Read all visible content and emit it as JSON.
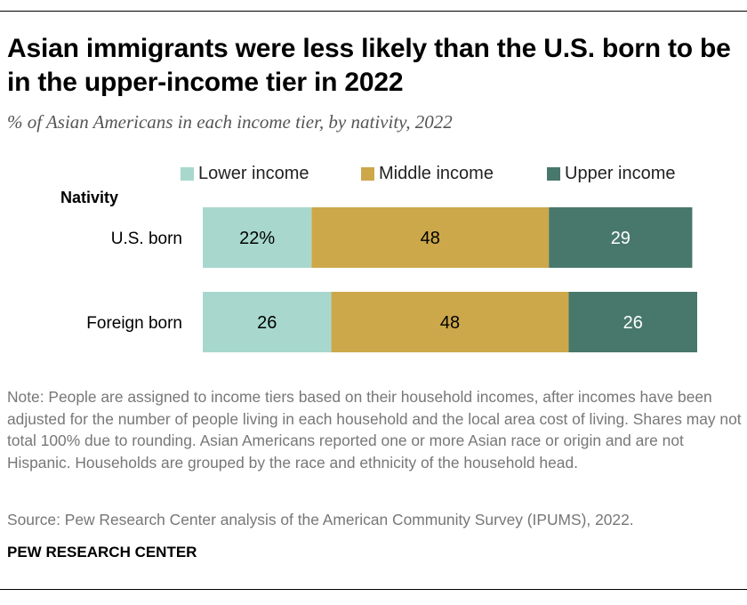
{
  "title": "Asian immigrants were less likely than the U.S. born to be in the upper-income tier in 2022",
  "subtitle": "% of Asian Americans in each income tier, by nativity, 2022",
  "note": "Note: People are assigned to income tiers based on their household incomes, after incomes have been adjusted for the number of people living in each household and the local area cost of living. Shares may not total 100% due to rounding. Asian Americans reported one or more Asian race or origin and are not Hispanic. Households are grouped by the race and ethnicity of the household head.",
  "source": "Source: Pew Research Center analysis of the American Community Survey (IPUMS), 2022.",
  "brand": "PEW RESEARCH CENTER",
  "chart_data": {
    "type": "bar",
    "orientation": "horizontal",
    "stacked": true,
    "group_label": "Nativity",
    "categories": [
      "U.S. born",
      "Foreign born"
    ],
    "series": [
      {
        "name": "Lower income",
        "color": "#a8d8cd",
        "values": [
          22,
          26
        ],
        "labels": [
          "22%",
          "26"
        ],
        "label_color": "#000000"
      },
      {
        "name": "Middle income",
        "color": "#cda84a",
        "values": [
          48,
          48
        ],
        "labels": [
          "48",
          "48"
        ],
        "label_color": "#000000"
      },
      {
        "name": "Upper income",
        "color": "#48786b",
        "values": [
          29,
          26
        ],
        "labels": [
          "29",
          "26"
        ],
        "label_color": "#ffffff"
      }
    ],
    "xlim": [
      0,
      100
    ],
    "legend": "top",
    "grid": false
  }
}
